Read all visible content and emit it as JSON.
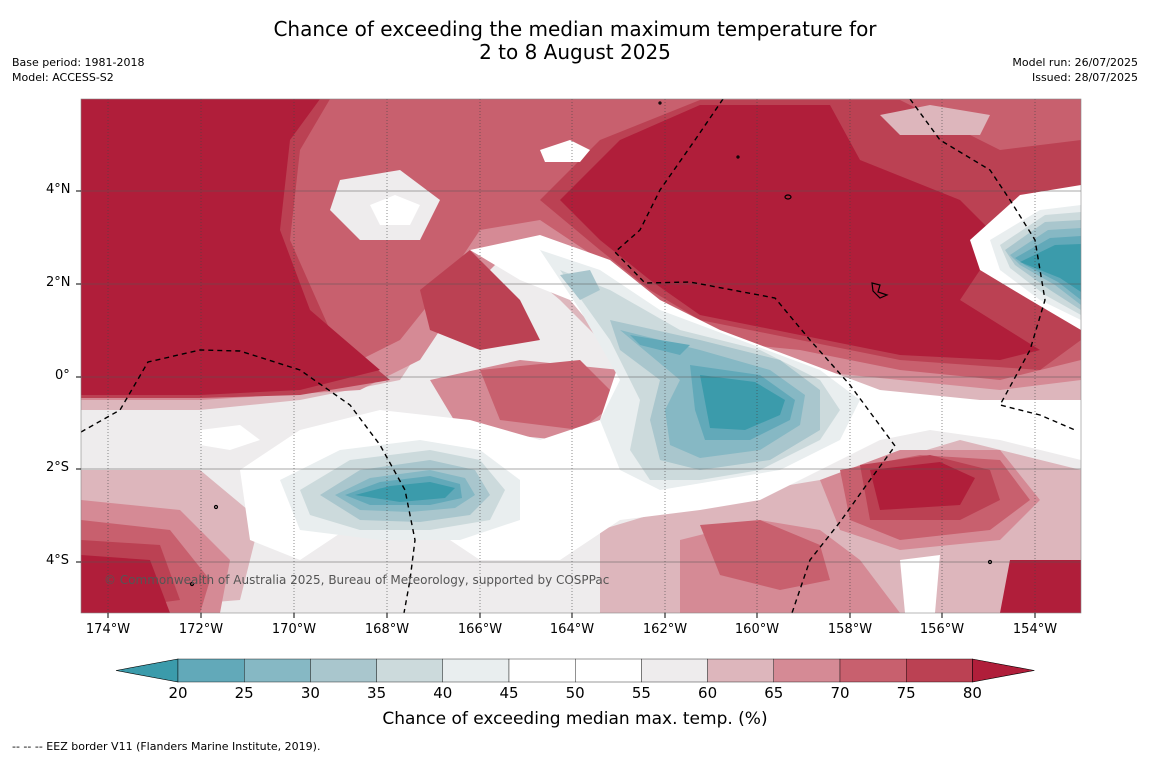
{
  "title_line1": "Chance of exceeding the median maximum temperature for",
  "title_line2": "2 to 8 August 2025",
  "base_period": "Base period: 1981-2018",
  "model": "Model: ACCESS-S2",
  "model_run": "Model run: 26/07/2025",
  "issued": "Issued: 28/07/2025",
  "copyright": "© Commonwealth of Australia 2025, Bureau of Meteorology, supported by COSPPac",
  "lat_labels": [
    "4°N",
    "2°N",
    "0°",
    "2°S",
    "4°S"
  ],
  "lon_labels": [
    "174°W",
    "172°W",
    "170°W",
    "168°W",
    "166°W",
    "164°W",
    "162°W",
    "160°W",
    "158°W",
    "156°W",
    "154°W"
  ],
  "colorbar": {
    "ticks": [
      "20",
      "25",
      "30",
      "35",
      "40",
      "45",
      "50",
      "55",
      "60",
      "65",
      "70",
      "75",
      "80"
    ],
    "colors": [
      "#3b9bab",
      "#62a9b9",
      "#86b8c4",
      "#a9c6cd",
      "#ccdadc",
      "#e9eeef",
      "#ffffff",
      "#ffffff",
      "#eeeced",
      "#ddb6bc",
      "#d58a95",
      "#c8606e",
      "#bb4153",
      "#b01e3a"
    ],
    "title": "Chance of exceeding median max. temp. (%)"
  },
  "eez_legend": "-- -- -- EEZ border V11 (Flanders Marine Institute, 2019)."
}
